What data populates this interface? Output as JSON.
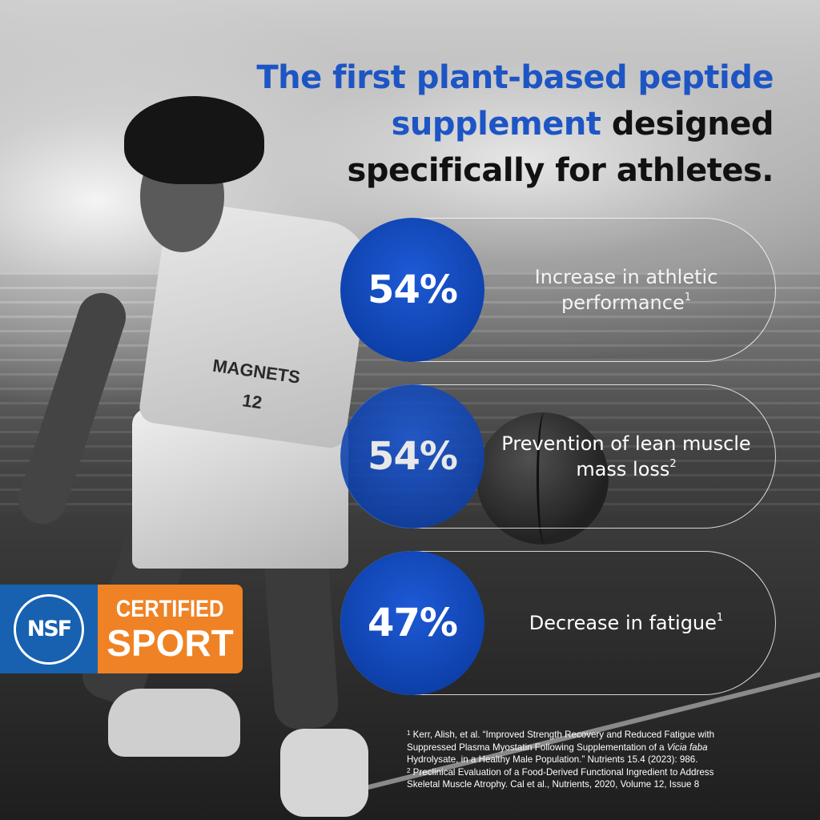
{
  "headline": {
    "blue_part": "The first plant-based peptide supplement",
    "rest": " designed specifically for athletes.",
    "line1": "The first plant-based peptide",
    "line2_blue": "supplement",
    "line2_rest": " designed",
    "line3": "specifically for athletes."
  },
  "stats": [
    {
      "value": "54%",
      "label": "Increase in athletic performance",
      "footnote": "1"
    },
    {
      "value": "54%",
      "label": "Prevention of lean muscle mass loss",
      "footnote": "2"
    },
    {
      "value": "47%",
      "label": "Decrease in fatigue",
      "footnote": "1"
    }
  ],
  "badge": {
    "nsf": "NSF",
    "certified": "CERTIFIED",
    "sport": "SPORT"
  },
  "jersey_text": "MAGNETS 12",
  "footnotes": [
    {
      "marker": "1",
      "text_before": " Kerr, Alish, et al. “Improved Strength Recovery and Reduced Fatigue with Suppressed Plasma Myostatin Following Supplementation of a ",
      "italic": "Vicia faba",
      "text_after": " Hydrolysate, in a Healthy Male Population.” Nutrients 15.4 (2023): 986."
    },
    {
      "marker": "2",
      "text": " Preclinical Evaluation of a Food-Derived Functional Ingredient to Address Skeletal Muscle Atrophy. Cal et al., Nutrients, 2020, Volume 12, Issue 8"
    }
  ],
  "colors": {
    "brand_blue": "#1d55c4",
    "circle_blue": "#0d3fa8",
    "nsf_blue": "#1761b0",
    "sport_orange": "#ef8225"
  }
}
